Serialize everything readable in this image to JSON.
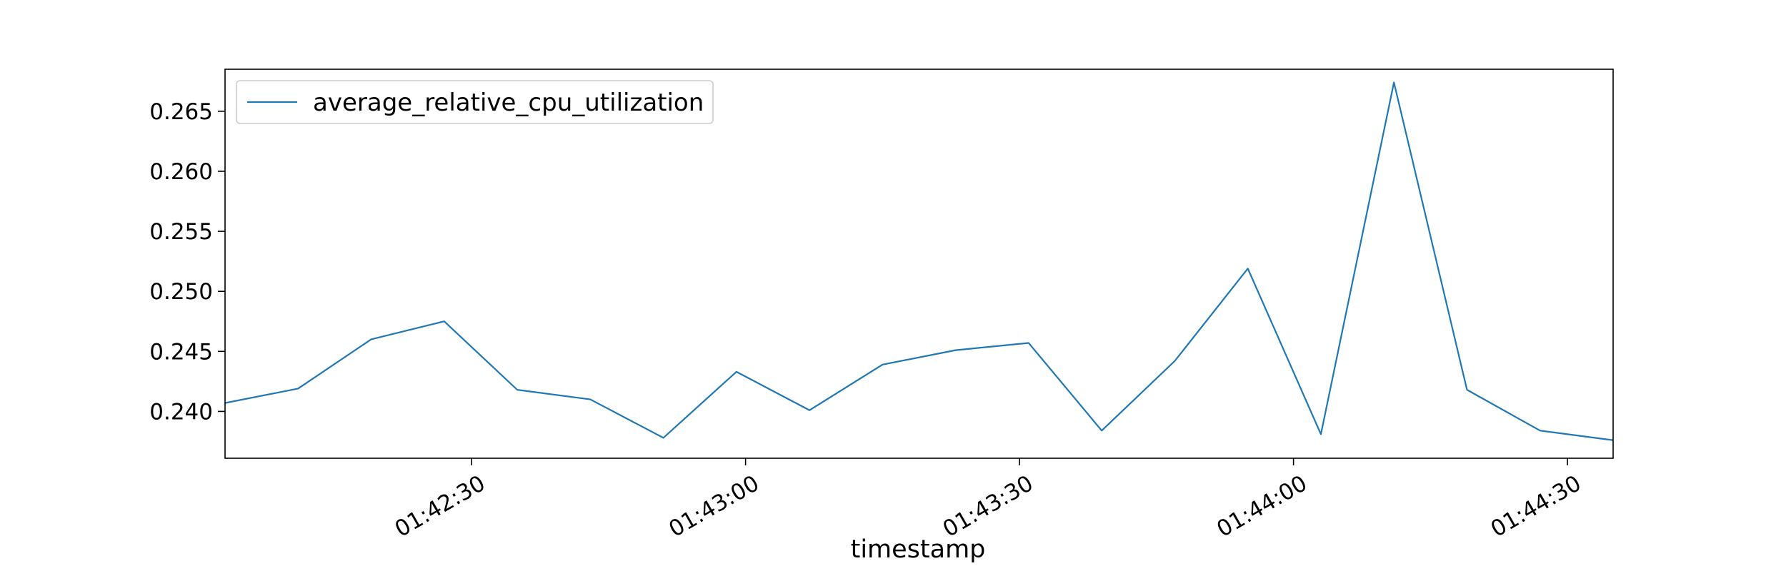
{
  "chart_data": {
    "type": "line",
    "title": "",
    "xlabel": "timestamp",
    "ylabel": "",
    "x_tick_labels": [
      "01:42:30",
      "01:43:00",
      "01:43:30",
      "01:44:00",
      "01:44:30"
    ],
    "y_tick_labels": [
      "0.240",
      "0.245",
      "0.250",
      "0.255",
      "0.260",
      "0.265"
    ],
    "ylim": [
      0.2361,
      0.2685
    ],
    "xlim": [
      "01:42:03",
      "01:44:35"
    ],
    "grid": false,
    "legend_position": "top-left",
    "colors": {
      "line": "#1f77b4",
      "axes": "#000000"
    },
    "series": [
      {
        "name": "average_relative_cpu_utilization",
        "x": [
          "01:42:03",
          "01:42:11",
          "01:42:19",
          "01:42:27",
          "01:42:35",
          "01:42:43",
          "01:42:51",
          "01:42:59",
          "01:43:07",
          "01:43:15",
          "01:43:23",
          "01:43:31",
          "01:43:39",
          "01:43:47",
          "01:43:55",
          "01:44:03",
          "01:44:11",
          "01:44:19",
          "01:44:27",
          "01:44:35"
        ],
        "values": [
          0.2407,
          0.2419,
          0.246,
          0.2475,
          0.2418,
          0.241,
          0.2378,
          0.2433,
          0.2401,
          0.2439,
          0.2451,
          0.2457,
          0.2384,
          0.2442,
          0.2519,
          0.2381,
          0.2674,
          0.2418,
          0.2384,
          0.2376
        ]
      }
    ]
  }
}
